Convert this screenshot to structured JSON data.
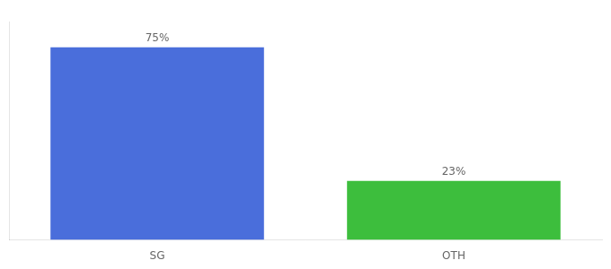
{
  "chart_data": {
    "type": "bar",
    "categories": [
      "SG",
      "OTH"
    ],
    "values": [
      75,
      23
    ],
    "value_labels": [
      "75%",
      "23%"
    ],
    "colors": [
      "#4a6edb",
      "#3dbe3d"
    ],
    "ylim": [
      0,
      85
    ],
    "grid": false,
    "data_labels": true,
    "tick_labels": "x"
  }
}
